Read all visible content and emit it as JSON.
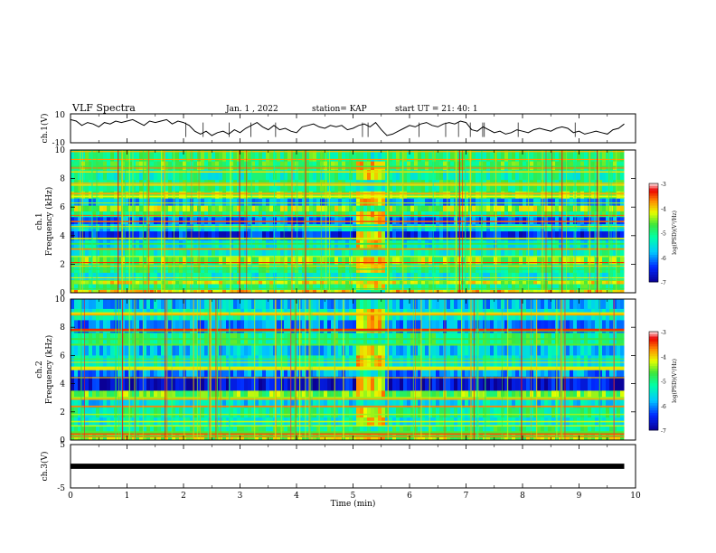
{
  "header": {
    "title": "VLF Spectra",
    "date": "Jan. 1 , 2022",
    "station": "station= KAP",
    "start": "start UT = 21: 40: 1"
  },
  "chart_data": [
    {
      "type": "line",
      "name": "ch1-waveform",
      "ylabel": "ch.1(V)",
      "ylim": [
        -10,
        10
      ],
      "yticks": [
        "10",
        "-10"
      ],
      "xlim": [
        0,
        10
      ],
      "x": [
        0,
        0.1,
        0.2,
        0.3,
        0.4,
        0.5,
        0.6,
        0.7,
        0.8,
        0.9,
        1.0,
        1.1,
        1.2,
        1.3,
        1.4,
        1.5,
        1.6,
        1.7,
        1.8,
        1.9,
        2.0,
        2.1,
        2.2,
        2.3,
        2.4,
        2.5,
        2.6,
        2.7,
        2.8,
        2.9,
        3.0,
        3.1,
        3.2,
        3.3,
        3.4,
        3.5,
        3.6,
        3.7,
        3.8,
        3.9,
        4.0,
        4.1,
        4.2,
        4.3,
        4.4,
        4.5,
        4.6,
        4.7,
        4.8,
        4.9,
        5.0,
        5.1,
        5.2,
        5.3,
        5.4,
        5.5,
        5.6,
        5.7,
        5.8,
        5.9,
        6.0,
        6.1,
        6.2,
        6.3,
        6.4,
        6.5,
        6.6,
        6.7,
        6.8,
        6.9,
        7.0,
        7.1,
        7.2,
        7.3,
        7.4,
        7.5,
        7.6,
        7.7,
        7.8,
        7.9,
        8.0,
        8.1,
        8.2,
        8.3,
        8.4,
        8.5,
        8.6,
        8.7,
        8.8,
        8.9,
        9.0,
        9.1,
        9.2,
        9.3,
        9.4,
        9.5,
        9.6,
        9.7,
        9.8
      ],
      "y": [
        6,
        5,
        2,
        4,
        3,
        1,
        4,
        3,
        5,
        4,
        5,
        6,
        4,
        2,
        5,
        4,
        5,
        6,
        3,
        5,
        4,
        2,
        -2,
        -4,
        -2,
        -5,
        -3,
        -2,
        -4,
        -1,
        -3,
        0,
        2,
        4,
        1,
        -1,
        2,
        -1,
        0,
        -2,
        -3,
        1,
        2,
        3,
        1,
        0,
        2,
        1,
        2,
        -1,
        0,
        2,
        3,
        1,
        4,
        -1,
        -5,
        -4,
        -2,
        0,
        2,
        1,
        3,
        4,
        2,
        1,
        3,
        4,
        3,
        5,
        4,
        -1,
        -2,
        1,
        -1,
        -3,
        -2,
        -4,
        -3,
        -1,
        -2,
        -3,
        -1,
        0,
        -1,
        -2,
        0,
        1,
        0,
        -3,
        -2,
        -4,
        -3,
        -2,
        -3,
        -4,
        -1,
        0,
        3
      ]
    },
    {
      "type": "heatmap",
      "name": "ch1-spectrogram",
      "ylabel": "ch.1 Frequency (kHz)",
      "ylim": [
        0,
        10
      ],
      "yticks": [
        "0",
        "2",
        "4",
        "6",
        "8",
        "10"
      ],
      "xlim": [
        0,
        10
      ],
      "colorbar": {
        "label": "log(PSD)(V²/Hz)",
        "range": [
          -7,
          -3
        ],
        "ticks": [
          "-3",
          "-4",
          "-5",
          "-6",
          "-7"
        ]
      },
      "time_bands": [
        {
          "t0": 0,
          "t1": 5.05,
          "desc": "broadband"
        },
        {
          "t0": 5.05,
          "t1": 5.55,
          "desc": "strong emission"
        },
        {
          "t0": 5.55,
          "t1": 9.8,
          "desc": "broadband"
        }
      ],
      "bands": [
        {
          "f0": 9.2,
          "f1": 10.0,
          "level": -4.9
        },
        {
          "f0": 8.6,
          "f1": 9.2,
          "level": -4.8
        },
        {
          "f0": 7.9,
          "f1": 8.6,
          "level": -5.2
        },
        {
          "f0": 7.1,
          "f1": 7.9,
          "level": -5.0
        },
        {
          "f0": 6.6,
          "f1": 7.1,
          "level": -4.6
        },
        {
          "f0": 6.1,
          "f1": 6.6,
          "level": -5.9
        },
        {
          "f0": 5.7,
          "f1": 6.1,
          "level": -4.4
        },
        {
          "f0": 5.3,
          "f1": 5.7,
          "level": -5.0
        },
        {
          "f0": 4.8,
          "f1": 5.3,
          "level": -6.2
        },
        {
          "f0": 4.3,
          "f1": 4.8,
          "level": -5.6
        },
        {
          "f0": 3.7,
          "f1": 4.3,
          "level": -6.5
        },
        {
          "f0": 3.1,
          "f1": 3.7,
          "level": -5.5
        },
        {
          "f0": 2.5,
          "f1": 3.1,
          "level": -5.3
        },
        {
          "f0": 2.0,
          "f1": 2.5,
          "level": -4.5
        },
        {
          "f0": 1.4,
          "f1": 2.0,
          "level": -5.0
        },
        {
          "f0": 0.9,
          "f1": 1.4,
          "level": -5.4
        },
        {
          "f0": 0.6,
          "f1": 0.9,
          "level": -4.2
        },
        {
          "f0": 0.2,
          "f1": 0.6,
          "level": -5.0
        },
        {
          "f0": 0.0,
          "f1": 0.2,
          "level": -4.0
        }
      ]
    },
    {
      "type": "heatmap",
      "name": "ch2-spectrogram",
      "ylabel": "ch.2 Frequency (kHz)",
      "ylim": [
        0,
        10
      ],
      "yticks": [
        "0",
        "2",
        "4",
        "6",
        "8",
        "10"
      ],
      "xlim": [
        0,
        10
      ],
      "colorbar": {
        "label": "log(PSD)(V²/Hz)",
        "range": [
          -7,
          -3
        ],
        "ticks": [
          "-3",
          "-4",
          "-5",
          "-6",
          "-7"
        ]
      },
      "time_bands": [
        {
          "t0": 0,
          "t1": 5.05,
          "desc": "broadband"
        },
        {
          "t0": 5.05,
          "t1": 5.55,
          "desc": "strong emission"
        },
        {
          "t0": 5.55,
          "t1": 9.8,
          "desc": "broadband"
        }
      ],
      "bands": [
        {
          "f0": 9.3,
          "f1": 10.0,
          "level": -5.8
        },
        {
          "f0": 8.5,
          "f1": 9.3,
          "level": -5.4
        },
        {
          "f0": 7.6,
          "f1": 8.5,
          "level": -6.0
        },
        {
          "f0": 6.8,
          "f1": 7.6,
          "level": -5.0
        },
        {
          "f0": 6.0,
          "f1": 6.8,
          "level": -5.7
        },
        {
          "f0": 5.2,
          "f1": 6.0,
          "level": -5.4
        },
        {
          "f0": 4.5,
          "f1": 5.2,
          "level": -6.0
        },
        {
          "f0": 3.5,
          "f1": 4.5,
          "level": -6.7
        },
        {
          "f0": 3.0,
          "f1": 3.5,
          "level": -4.6
        },
        {
          "f0": 2.3,
          "f1": 3.0,
          "level": -5.6
        },
        {
          "f0": 1.6,
          "f1": 2.3,
          "level": -5.1
        },
        {
          "f0": 1.0,
          "f1": 1.6,
          "level": -5.4
        },
        {
          "f0": 0.4,
          "f1": 1.0,
          "level": -5.0
        },
        {
          "f0": 0.0,
          "f1": 0.4,
          "level": -4.4
        }
      ]
    },
    {
      "type": "line",
      "name": "ch3-waveform",
      "ylabel": "ch.3(V)",
      "ylim": [
        -5,
        5
      ],
      "yticks": [
        "5",
        "0",
        "-5"
      ],
      "xlim": [
        0,
        10
      ],
      "x": [
        0,
        9.8
      ],
      "y": [
        0,
        0
      ],
      "xlabel": "Time (min)",
      "xticks": [
        "0",
        "1",
        "2",
        "3",
        "4",
        "5",
        "6",
        "7",
        "8",
        "9",
        "10"
      ]
    }
  ]
}
